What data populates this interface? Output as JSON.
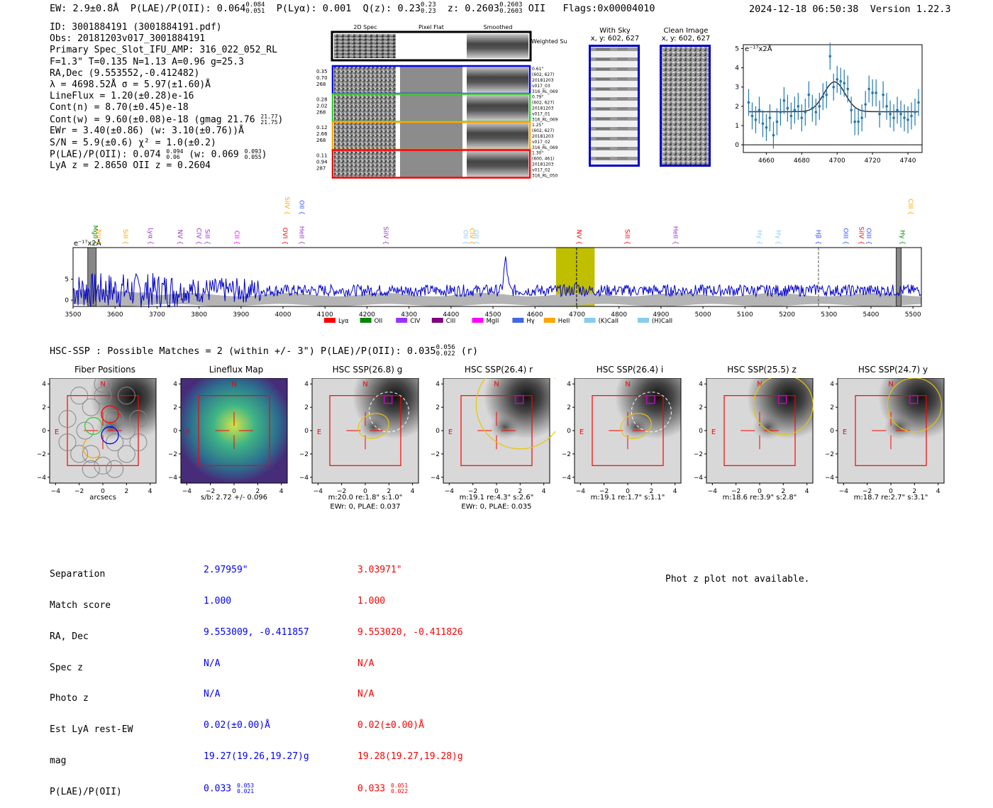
{
  "header": {
    "ew": "EW: 2.9±0.8Å",
    "plae": "P(LAE)/P(OII): 0.064",
    "plae_up": "0.084",
    "plae_lo": "0.051",
    "plya": "P(Lyα): 0.001",
    "qz": "Q(z): 0.23",
    "qz_up": "0.23",
    "qz_lo": "0.23",
    "z": "z: 0.2603",
    "z_up": "0.2603",
    "z_lo": "0.2603",
    "line": "OII",
    "flags": "Flags:0x00004010",
    "date": "2024-12-18 06:50:38",
    "version": "Version 1.22.3"
  },
  "info": {
    "id": "ID: 3001884191 (3001884191.pdf)",
    "obs": "Obs: 20181203v017_3001884191",
    "primary": "Primary Spec_Slot_IFU_AMP: 316_022_052_RL",
    "fit": "F=1.3\"  T=0.135  N=1.13  A=0.96  g=25.3",
    "radec": "RA,Dec (9.553552,-0.412482)",
    "lambda": "λ = 4698.52Å  σ = 5.97(±1.60)Å",
    "lineflux": "LineFlux = 1.20(±0.28)e-16",
    "contn": "Cont(n) = 8.70(±0.45)e-18",
    "contw": "Cont(w) = 9.60(±0.08)e-18 (gmag 21.76",
    "contw_up": "21.77",
    "contw_lo": "21.75",
    "ewr": "EWr = 3.40(±0.86) (w: 3.10(±0.76))Å",
    "sn": "S/N = 5.9(±0.6)  χ² = 1.0(±0.2)",
    "plae": "P(LAE)/P(OII): 0.074",
    "plae_up": "0.094",
    "plae_lo": "0.06",
    "plae_w": "(w: 0.069",
    "plae_w_up": "0.093",
    "plae_w_lo": "0.055",
    "z": "LyA z = 2.8650   OII z = 0.2604"
  },
  "twod": {
    "cols": [
      "2D Spec",
      "Pixel Flat",
      "Smoothed"
    ],
    "weighted": "Weighted Sum",
    "rows": [
      {
        "left": [
          "0.35",
          "0.70",
          "268"
        ],
        "right": [
          "0.61\"",
          "(602, 627)",
          "20181203",
          "v017_03",
          "316_RL_069"
        ],
        "color": "#0000ff"
      },
      {
        "left": [
          "0.28",
          "2.02",
          "268"
        ],
        "right": [
          "0.79\"",
          "(602, 627)",
          "20181203",
          "v017_01",
          "316_RL_069"
        ],
        "color": "#33cc33"
      },
      {
        "left": [
          "0.12",
          "2.66",
          "268"
        ],
        "right": [
          "1.25\"",
          "(602, 627)",
          "20181203",
          "v017_02",
          "316_RL_069"
        ],
        "color": "#ffa500"
      },
      {
        "left": [
          "0.11",
          "0.94",
          "287"
        ],
        "right": [
          "1.30\"",
          "(600, 461)",
          "20181203",
          "v017_02",
          "316_RL_050"
        ],
        "color": "#ff0000"
      }
    ]
  },
  "sky": {
    "with_sky": "With Sky",
    "with_sky_xy": "x, y: 602, 627",
    "clean": "Clean Image",
    "clean_xy": "x, y: 602, 627"
  },
  "fit_chart": {
    "ylabel": "e⁻¹⁷x2Å"
  },
  "full_spec": {
    "ylabel": "e⁻¹⁷x2Å",
    "lines_top": [
      {
        "label": "SiIV",
        "color": "#ffa500"
      },
      {
        "label": "OII",
        "color": "#3355ff"
      },
      {
        "label": "CIII",
        "color": "#ffa500"
      }
    ],
    "lines": [
      {
        "label": "MgII",
        "color": "#008800"
      },
      {
        "label": "NV",
        "color": "#ffa500"
      },
      {
        "label": "SiII",
        "color": "#ffa500"
      },
      {
        "label": "Lyα",
        "color": "#9933cc"
      },
      {
        "label": "NV",
        "color": "#9933cc"
      },
      {
        "label": "CIV",
        "color": "#9933cc"
      },
      {
        "label": "SiII",
        "color": "#9933cc"
      },
      {
        "label": "CII",
        "color": "#ff00ff"
      },
      {
        "label": "OVI",
        "color": "#ff0000"
      },
      {
        "label": "HeII",
        "color": "#9933cc"
      },
      {
        "label": "SiIV",
        "color": "#9933cc"
      },
      {
        "label": "OII",
        "color": "#88ccff"
      },
      {
        "label": "CIV",
        "color": "#ffa500"
      },
      {
        "label": "OII",
        "color": "#88ccff"
      },
      {
        "label": "NV",
        "color": "#ff0000"
      },
      {
        "label": "SiII",
        "color": "#ff0000"
      },
      {
        "label": "HeII",
        "color": "#9933cc"
      },
      {
        "label": "Hγ",
        "color": "#88ccff"
      },
      {
        "label": "Hγ",
        "color": "#88ccff"
      },
      {
        "label": "Hβ",
        "color": "#3355ff"
      },
      {
        "label": "OIII",
        "color": "#3355ff"
      },
      {
        "label": "SiIV",
        "color": "#ff0000"
      },
      {
        "label": "OIII",
        "color": "#3355ff"
      },
      {
        "label": "Hγ",
        "color": "#008800"
      }
    ],
    "legend": [
      {
        "label": "Lyα",
        "color": "#ff0000"
      },
      {
        "label": "OII",
        "color": "#008800"
      },
      {
        "label": "CIV",
        "color": "#9933ff"
      },
      {
        "label": "CIII",
        "color": "#800080"
      },
      {
        "label": "MgII",
        "color": "#ff00ff"
      },
      {
        "label": "Hγ",
        "color": "#4169e1"
      },
      {
        "label": "HeII",
        "color": "#ffa500"
      },
      {
        "label": "(K)CaII",
        "color": "#88ccee"
      },
      {
        "label": "(H)CaII",
        "color": "#88ccee"
      }
    ]
  },
  "hsc": {
    "title": "HSC-SSP : Possible Matches = 2 (within +/- 3\")  P(LAE)/P(OII): 0.035",
    "title_up": "0.056",
    "title_lo": "0.022",
    "title_band": "(r)"
  },
  "stamps": [
    {
      "title": "Fiber Positions",
      "cap1": "arcsecs",
      "cap2": ""
    },
    {
      "title": "Lineflux Map",
      "cap1": "s/b: 2.72 +/- 0.096",
      "cap2": ""
    },
    {
      "title": "HSC SSP(26.8) g",
      "cap1": "m:20.0  re:1.8\"  s:1.0\"",
      "cap2": "EWr: 0, PLAE: 0.037"
    },
    {
      "title": "HSC SSP(26.4) r",
      "cap1": "m:19.1  re:4.3\"  s:2.6\"",
      "cap2": "EWr: 0, PLAE: 0.035"
    },
    {
      "title": "HSC SSP(26.4) i",
      "cap1": "m:19.1  re:1.7\"  s:1.1\"",
      "cap2": ""
    },
    {
      "title": "HSC SSP(25.5) z",
      "cap1": "m:18.6  re:3.9\"  s:2.8\"",
      "cap2": ""
    },
    {
      "title": "HSC SSP(24.7) y",
      "cap1": "m:18.7  re:2.7\"  s:3.1\"",
      "cap2": ""
    }
  ],
  "table": {
    "labels": [
      "Separation",
      "Match score",
      "RA, Dec",
      "Spec z",
      "Photo z",
      "Est LyA rest-EW",
      "mag",
      "P(LAE)/P(OII)"
    ],
    "blue": [
      "2.97959\"",
      "1.000",
      "9.553009, -0.411857",
      "N/A",
      "N/A",
      "0.02(±0.00)Å",
      "19.27(19.26,19.27)g",
      "0.033"
    ],
    "blue_up": "0.053",
    "blue_lo": "0.021",
    "red": [
      "3.03971\"",
      "1.000",
      "9.553020, -0.411826",
      "N/A",
      "N/A",
      "0.02(±0.00)Å",
      "19.28(19.27,19.28)g",
      "0.033"
    ],
    "red_up": "0.051",
    "red_lo": "0.022",
    "photz": "Phot z plot not available."
  },
  "chart_data": [
    {
      "type": "scatter",
      "title": "Emission line fit",
      "xlabel": "",
      "ylabel": "e⁻¹⁷x2Å",
      "xlim": [
        4647,
        4748
      ],
      "ylim": [
        -0.4,
        5.2
      ],
      "xticks": [
        4660,
        4680,
        4700,
        4720,
        4740
      ],
      "yticks": [
        0,
        1,
        2,
        3,
        4,
        5
      ],
      "x": [
        4650,
        4652,
        4654,
        4656,
        4658,
        4660,
        4662,
        4664,
        4666,
        4668,
        4670,
        4672,
        4674,
        4676,
        4678,
        4680,
        4682,
        4684,
        4686,
        4688,
        4690,
        4692,
        4694,
        4696,
        4698,
        4700,
        4702,
        4704,
        4706,
        4708,
        4710,
        4712,
        4714,
        4716,
        4718,
        4720,
        4722,
        4724,
        4726,
        4728,
        4730,
        4732,
        4734,
        4736,
        4738,
        4740,
        4742,
        4744,
        4746
      ],
      "y": [
        2.2,
        1.5,
        1.3,
        1.8,
        1.1,
        0.9,
        1.4,
        0.5,
        1.2,
        1.7,
        2.3,
        1.9,
        1.5,
        1.8,
        2.0,
        1.4,
        1.7,
        2.6,
        1.9,
        1.7,
        2.0,
        2.5,
        2.6,
        4.6,
        3.0,
        3.4,
        3.3,
        3.2,
        2.9,
        1.8,
        1.2,
        1.2,
        1.4,
        2.1,
        2.9,
        2.7,
        2.7,
        1.6,
        2.6,
        2.0,
        1.6,
        1.4,
        1.8,
        1.6,
        1.4,
        1.3,
        1.5,
        1.7,
        2.2
      ],
      "err": [
        0.7
      ],
      "fit": {
        "continuum": 1.72,
        "amplitude": 1.55,
        "center": 4698.5,
        "sigma": 5.97
      }
    },
    {
      "type": "line",
      "title": "Full spectrum",
      "xlabel": "",
      "ylabel": "e⁻¹⁷x2Å",
      "xlim": [
        3500,
        5520
      ],
      "ylim": [
        -1.5,
        12.5
      ],
      "xticks": [
        3500,
        3600,
        3700,
        3800,
        3900,
        4000,
        4100,
        4200,
        4300,
        4400,
        4500,
        4600,
        4700,
        4800,
        4900,
        5000,
        5100,
        5200,
        5300,
        5400,
        5500
      ],
      "yticks": [
        0,
        5
      ],
      "noise_level": 2.3,
      "emission_peaks": [
        {
          "x": 4530,
          "y": 9.5
        },
        {
          "x": 4700,
          "y": 3.5
        },
        {
          "x": 5275,
          "y": 3.0
        }
      ],
      "highlight_band": [
        4650,
        4742
      ],
      "marker_lines": [
        4699,
        5275
      ],
      "masked_regions": [
        [
          3535,
          3555
        ],
        [
          5460,
          5472
        ]
      ]
    }
  ]
}
